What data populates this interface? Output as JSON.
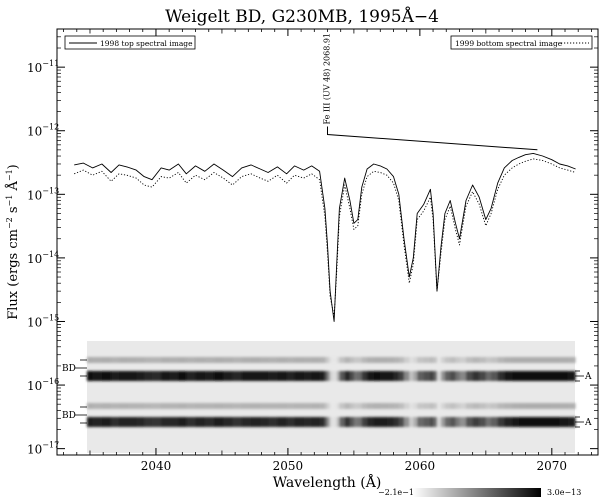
{
  "chart_data": {
    "type": "line",
    "title": "Weigelt BD, G230MB, 1995Å−4",
    "xlabel": "Wavelength (Å)",
    "ylabel_main": "Flux (ergs cm",
    "ylabel_sup1": "−2",
    "ylabel_mid1": " s",
    "ylabel_sup2": "−1",
    "ylabel_mid2": " Å",
    "ylabel_sup3": "−1",
    "ylabel_end": ")",
    "xlim": [
      2032.5,
      2073.5
    ],
    "ylim_log10": [
      -17.1,
      -10.4
    ],
    "yscale": "log",
    "xticks": [
      2040,
      2050,
      2060,
      2070
    ],
    "xtick_labels": [
      "2040",
      "2050",
      "2060",
      "2070"
    ],
    "yticks": [
      {
        "exp": -11,
        "base": "10",
        "sup": "−11"
      },
      {
        "exp": -12,
        "base": "10",
        "sup": "−12"
      },
      {
        "exp": -13,
        "base": "10",
        "sup": "−13"
      },
      {
        "exp": -14,
        "base": "10",
        "sup": "−14"
      },
      {
        "exp": -15,
        "base": "10",
        "sup": "−15"
      },
      {
        "exp": -16,
        "base": "10",
        "sup": "−16"
      },
      {
        "exp": -17,
        "base": "10",
        "sup": "−17"
      }
    ],
    "legend_left": "1998 top spectral image",
    "legend_right": "1999 bottom spectral image",
    "annotation": {
      "text": "Fe III (UV 48) 2068.91",
      "x_start": 2053.0,
      "x_end": 2068.91,
      "log_y_start": -12.06,
      "log_y_end": -12.3
    },
    "image_labels": {
      "top_left": "BD",
      "top_right": "A",
      "bottom_left": "BD",
      "bottom_right": "A"
    },
    "colorbar": {
      "min_label": "−2.1e−14",
      "max_label": "3.0e−13"
    },
    "series": [
      {
        "name": "1998 top spectral image",
        "style": "solid",
        "x": [
          2033.8,
          2034.5,
          2035.2,
          2035.9,
          2036.6,
          2037.2,
          2037.8,
          2038.5,
          2039.1,
          2039.7,
          2040.4,
          2041.0,
          2041.7,
          2042.3,
          2043.0,
          2043.7,
          2044.4,
          2045.1,
          2045.8,
          2046.5,
          2047.2,
          2047.9,
          2048.5,
          2049.2,
          2049.9,
          2050.5,
          2051.2,
          2051.8,
          2052.4,
          2052.8,
          2053.0,
          2053.2,
          2053.5,
          2053.7,
          2053.9,
          2054.3,
          2054.7,
          2055.0,
          2055.3,
          2055.6,
          2056.0,
          2056.5,
          2057.0,
          2057.5,
          2058.0,
          2058.4,
          2058.8,
          2059.2,
          2059.5,
          2059.8,
          2060.3,
          2060.8,
          2061.0,
          2061.3,
          2061.6,
          2061.9,
          2062.3,
          2062.7,
          2063.0,
          2063.5,
          2064.0,
          2064.5,
          2065.0,
          2065.4,
          2065.9,
          2066.4,
          2067.0,
          2067.5,
          2068.0,
          2068.6,
          2069.3,
          2070.0,
          2070.6,
          2071.2,
          2071.8
        ],
        "y": [
          2.9e-13,
          3.1e-13,
          2.6e-13,
          3e-13,
          2.2e-13,
          2.9e-13,
          2.7e-13,
          2.4e-13,
          1.9e-13,
          1.7e-13,
          2.6e-13,
          2.4e-13,
          3e-13,
          2.1e-13,
          2.8e-13,
          2.3e-13,
          3e-13,
          2.4e-13,
          1.9e-13,
          2.6e-13,
          2.9e-13,
          2.5e-13,
          2.2e-13,
          2.7e-13,
          2.1e-13,
          2.8e-13,
          2.4e-13,
          2.8e-13,
          2.3e-13,
          6e-14,
          1.6e-14,
          3e-15,
          1e-15,
          8e-15,
          6e-14,
          1.8e-13,
          8e-14,
          3.5e-14,
          4e-14,
          1.3e-13,
          2.5e-13,
          3e-13,
          2.8e-13,
          2.5e-13,
          1.9e-13,
          1e-13,
          2e-14,
          5e-15,
          1e-14,
          5e-14,
          7e-14,
          1.2e-13,
          5e-14,
          3e-15,
          1.5e-14,
          5e-14,
          8e-14,
          3.5e-14,
          2e-14,
          8e-14,
          1.4e-13,
          9e-14,
          4e-14,
          6e-14,
          1.5e-13,
          2.6e-13,
          3.4e-13,
          3.8e-13,
          4.2e-13,
          4.4e-13,
          4e-13,
          3.5e-13,
          3e-13,
          2.8e-13,
          2.5e-13
        ]
      },
      {
        "name": "1999 bottom spectral image",
        "style": "dotted",
        "x": [
          2033.8,
          2034.5,
          2035.2,
          2035.9,
          2036.6,
          2037.2,
          2037.8,
          2038.5,
          2039.1,
          2039.7,
          2040.4,
          2041.0,
          2041.7,
          2042.3,
          2043.0,
          2043.7,
          2044.4,
          2045.1,
          2045.8,
          2046.5,
          2047.2,
          2047.9,
          2048.5,
          2049.2,
          2049.9,
          2050.5,
          2051.2,
          2051.8,
          2052.4,
          2052.8,
          2053.0,
          2053.2,
          2053.5,
          2053.7,
          2053.9,
          2054.3,
          2054.7,
          2055.0,
          2055.3,
          2055.6,
          2056.0,
          2056.5,
          2057.0,
          2057.5,
          2058.0,
          2058.4,
          2058.8,
          2059.2,
          2059.5,
          2059.8,
          2060.3,
          2060.8,
          2061.0,
          2061.3,
          2061.6,
          2061.9,
          2062.3,
          2062.7,
          2063.0,
          2063.5,
          2064.0,
          2064.5,
          2065.0,
          2065.4,
          2065.9,
          2066.4,
          2067.0,
          2067.5,
          2068.0,
          2068.6,
          2069.3,
          2070.0,
          2070.6,
          2071.2,
          2071.8
        ],
        "y": [
          2.1e-13,
          2.4e-13,
          2e-13,
          2.3e-13,
          1.6e-13,
          2.1e-13,
          2e-13,
          1.8e-13,
          1.4e-13,
          1.3e-13,
          1.9e-13,
          1.8e-13,
          2.2e-13,
          1.5e-13,
          2e-13,
          1.7e-13,
          2.2e-13,
          1.8e-13,
          1.4e-13,
          1.9e-13,
          2.1e-13,
          1.8e-13,
          1.6e-13,
          2e-13,
          1.5e-13,
          2e-13,
          1.8e-13,
          2.1e-13,
          1.7e-13,
          4.5e-14,
          1.2e-14,
          2.5e-15,
          1.2e-15,
          6e-15,
          4.5e-14,
          1.4e-13,
          6e-14,
          2.8e-14,
          3.2e-14,
          1e-13,
          1.9e-13,
          2.3e-13,
          2.2e-13,
          2e-13,
          1.5e-13,
          8e-14,
          1.6e-14,
          4e-15,
          8e-15,
          4e-14,
          5.5e-14,
          9e-14,
          4e-14,
          3e-15,
          1.2e-14,
          4e-14,
          6.5e-14,
          2.8e-14,
          1.6e-14,
          6.5e-14,
          1.1e-13,
          7e-14,
          3.2e-14,
          5e-14,
          1.2e-13,
          2e-13,
          2.6e-13,
          3e-13,
          3.3e-13,
          3.6e-13,
          3.4e-13,
          3e-13,
          2.6e-13,
          2.4e-13,
          2.2e-13
        ]
      }
    ]
  }
}
